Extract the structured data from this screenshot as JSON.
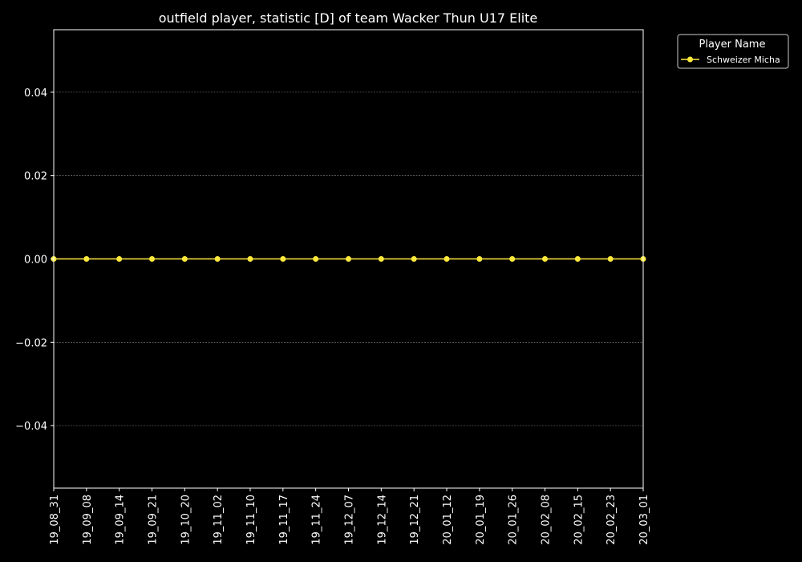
{
  "chart_data": {
    "type": "line",
    "title": "outfield player, statistic [D] of team Wacker Thun U17 Elite",
    "xlabel": "",
    "ylabel": "",
    "x": [
      "19_08_31",
      "19_09_08",
      "19_09_14",
      "19_09_21",
      "19_10_20",
      "19_11_02",
      "19_11_10",
      "19_11_17",
      "19_11_24",
      "19_12_07",
      "19_12_14",
      "19_12_21",
      "20_01_12",
      "20_01_19",
      "20_01_26",
      "20_02_08",
      "20_02_15",
      "20_02_23",
      "20_03_01"
    ],
    "series": [
      {
        "name": "Schweizer Micha",
        "values": [
          0,
          0,
          0,
          0,
          0,
          0,
          0,
          0,
          0,
          0,
          0,
          0,
          0,
          0,
          0,
          0,
          0,
          0,
          0
        ],
        "color": "#ffea3c"
      }
    ],
    "ylim": [
      -0.055,
      0.055
    ],
    "yticks": [
      "0.04",
      "0.02",
      "0.00",
      "−0.02",
      "−0.04"
    ],
    "ytick_values": [
      0.04,
      0.02,
      0.0,
      -0.02,
      -0.04
    ],
    "grid": "horizontal dashed",
    "legend": {
      "title": "Player Name",
      "position": "outside-top-right"
    },
    "colors": {
      "background": "#000000",
      "axes": "#ffffff",
      "grid": "#888888",
      "line": "#ffea3c"
    }
  }
}
